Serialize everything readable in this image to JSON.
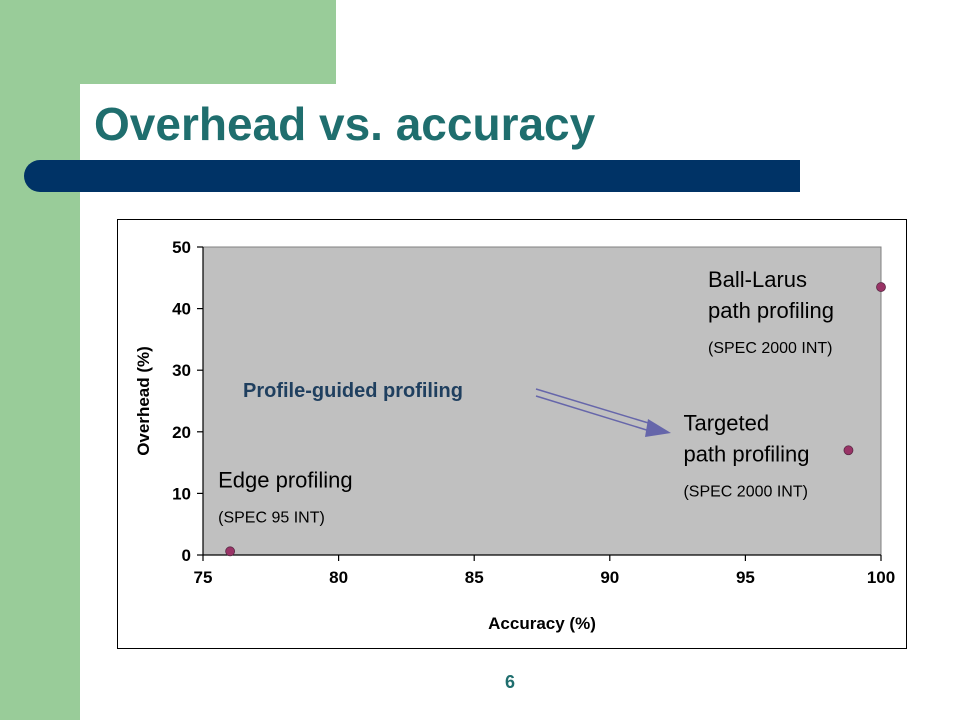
{
  "slide": {
    "title": "Overhead vs. accuracy",
    "page_number": "6",
    "colors": {
      "sidebar": "#99cc99",
      "title_bar": "#003366",
      "title_text": "#1f6e6e",
      "plot_area": "#c0c0c0",
      "marker": "#993366",
      "arrow": "#6666aa"
    }
  },
  "chart_data": {
    "type": "scatter",
    "xlabel": "Accuracy (%)",
    "ylabel": "Overhead (%)",
    "xlim": [
      75,
      100
    ],
    "ylim": [
      0,
      50
    ],
    "x_ticks": [
      75,
      80,
      85,
      90,
      95,
      100
    ],
    "y_ticks": [
      0,
      10,
      20,
      30,
      40,
      50
    ],
    "grid": false,
    "points": [
      {
        "x": 76,
        "y": 0.6,
        "label_lines": [
          "Edge profiling"
        ],
        "sublabel": "(SPEC 95 INT)"
      },
      {
        "x": 98.8,
        "y": 17,
        "label_lines": [
          "Targeted",
          "path profiling"
        ],
        "sublabel": "(SPEC 2000 INT)"
      },
      {
        "x": 100,
        "y": 43.5,
        "label_lines": [
          "Ball-Larus",
          "path profiling"
        ],
        "sublabel": "(SPEC 2000 INT)"
      }
    ],
    "annotation": {
      "text": "Profile-guided profiling"
    }
  }
}
